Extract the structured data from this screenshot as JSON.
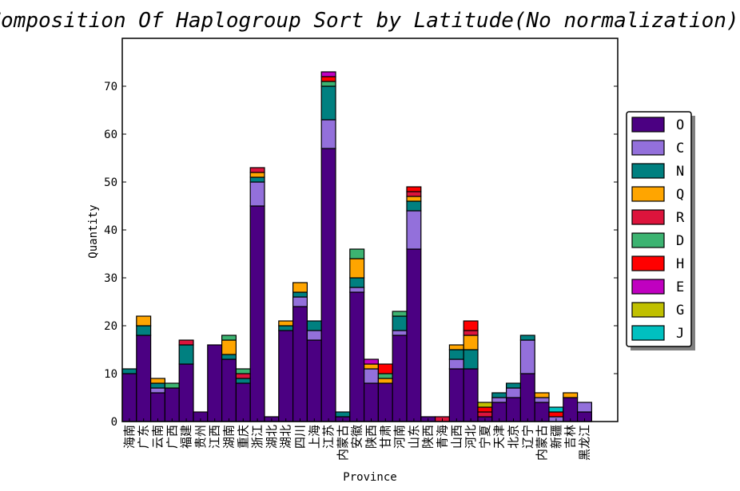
{
  "chart_data": {
    "type": "bar",
    "stacked": true,
    "title": "Composition Of Haplogroup  Sort by Latitude(No normalization)",
    "xlabel": "Province",
    "ylabel": "Quantity",
    "ylim": [
      0,
      80
    ],
    "yticks": [
      0,
      10,
      20,
      30,
      40,
      50,
      60,
      70
    ],
    "grid": false,
    "legend_position": "right",
    "categories": [
      "海南",
      "广东",
      "云南",
      "广西",
      "福建",
      "贵州",
      "江西",
      "湖南",
      "重庆",
      "浙江",
      "湖北",
      "湖北",
      "四川",
      "上海",
      "江苏",
      "内蒙古",
      "安徽",
      "陕西",
      "甘肃",
      "河南",
      "山东",
      "陕西",
      "青海",
      "山西",
      "河北",
      "宁夏",
      "天津",
      "北京",
      "辽宁",
      "内蒙古",
      "新疆",
      "吉林",
      "黑龙江"
    ],
    "series": [
      {
        "name": "O",
        "color": "#4b0082",
        "values": [
          10,
          18,
          6,
          7,
          12,
          2,
          16,
          13,
          8,
          45,
          1,
          19,
          24,
          17,
          57,
          1,
          27,
          8,
          8,
          18,
          36,
          1,
          0,
          11,
          11,
          1,
          4,
          5,
          10,
          4,
          0,
          5,
          2
        ]
      },
      {
        "name": "C",
        "color": "#9370db",
        "values": [
          0,
          0,
          1,
          0,
          0,
          0,
          0,
          0,
          0,
          5,
          0,
          0,
          2,
          2,
          6,
          0,
          1,
          3,
          0,
          1,
          8,
          0,
          0,
          2,
          0,
          0,
          1,
          2,
          7,
          1,
          1,
          0,
          2
        ]
      },
      {
        "name": "N",
        "color": "#008080",
        "values": [
          1,
          2,
          1,
          0,
          4,
          0,
          0,
          1,
          1,
          1,
          0,
          1,
          1,
          2,
          7,
          1,
          2,
          0,
          0,
          3,
          2,
          0,
          0,
          2,
          4,
          0,
          1,
          1,
          1,
          0,
          0,
          0,
          0
        ]
      },
      {
        "name": "Q",
        "color": "#ffa500",
        "values": [
          0,
          2,
          1,
          0,
          0,
          0,
          0,
          3,
          0,
          1,
          0,
          1,
          2,
          0,
          0,
          0,
          4,
          1,
          1,
          0,
          1,
          0,
          0,
          1,
          3,
          0,
          0,
          0,
          0,
          1,
          0,
          1,
          0
        ]
      },
      {
        "name": "R",
        "color": "#dc143c",
        "values": [
          0,
          0,
          0,
          0,
          1,
          0,
          0,
          0,
          1,
          1,
          0,
          0,
          0,
          0,
          0,
          0,
          0,
          0,
          0,
          0,
          1,
          0,
          1,
          0,
          1,
          1,
          0,
          0,
          0,
          0,
          0,
          0,
          0
        ]
      },
      {
        "name": "D",
        "color": "#3cb371",
        "values": [
          0,
          0,
          0,
          1,
          0,
          0,
          0,
          1,
          1,
          0,
          0,
          0,
          0,
          0,
          1,
          0,
          2,
          0,
          1,
          1,
          0,
          0,
          0,
          0,
          0,
          0,
          0,
          0,
          0,
          0,
          0,
          0,
          0
        ]
      },
      {
        "name": "H",
        "color": "#ff0000",
        "values": [
          0,
          0,
          0,
          0,
          0,
          0,
          0,
          0,
          0,
          0,
          0,
          0,
          0,
          0,
          1,
          0,
          0,
          0,
          2,
          0,
          1,
          0,
          0,
          0,
          2,
          1,
          0,
          0,
          0,
          0,
          1,
          0,
          0
        ]
      },
      {
        "name": "E",
        "color": "#c000c0",
        "values": [
          0,
          0,
          0,
          0,
          0,
          0,
          0,
          0,
          0,
          0,
          0,
          0,
          0,
          0,
          1,
          0,
          0,
          1,
          0,
          0,
          0,
          0,
          0,
          0,
          0,
          0,
          0,
          0,
          0,
          0,
          0,
          0,
          0
        ]
      },
      {
        "name": "G",
        "color": "#c0c000",
        "values": [
          0,
          0,
          0,
          0,
          0,
          0,
          0,
          0,
          0,
          0,
          0,
          0,
          0,
          0,
          0,
          0,
          0,
          0,
          0,
          0,
          0,
          0,
          0,
          0,
          0,
          1,
          0,
          0,
          0,
          0,
          0,
          0,
          0
        ]
      },
      {
        "name": "J",
        "color": "#00c0c0",
        "values": [
          0,
          0,
          0,
          0,
          0,
          0,
          0,
          0,
          0,
          0,
          0,
          0,
          0,
          0,
          0,
          0,
          0,
          0,
          0,
          0,
          0,
          0,
          0,
          0,
          0,
          0,
          0,
          0,
          0,
          0,
          1,
          0,
          0
        ]
      }
    ]
  }
}
